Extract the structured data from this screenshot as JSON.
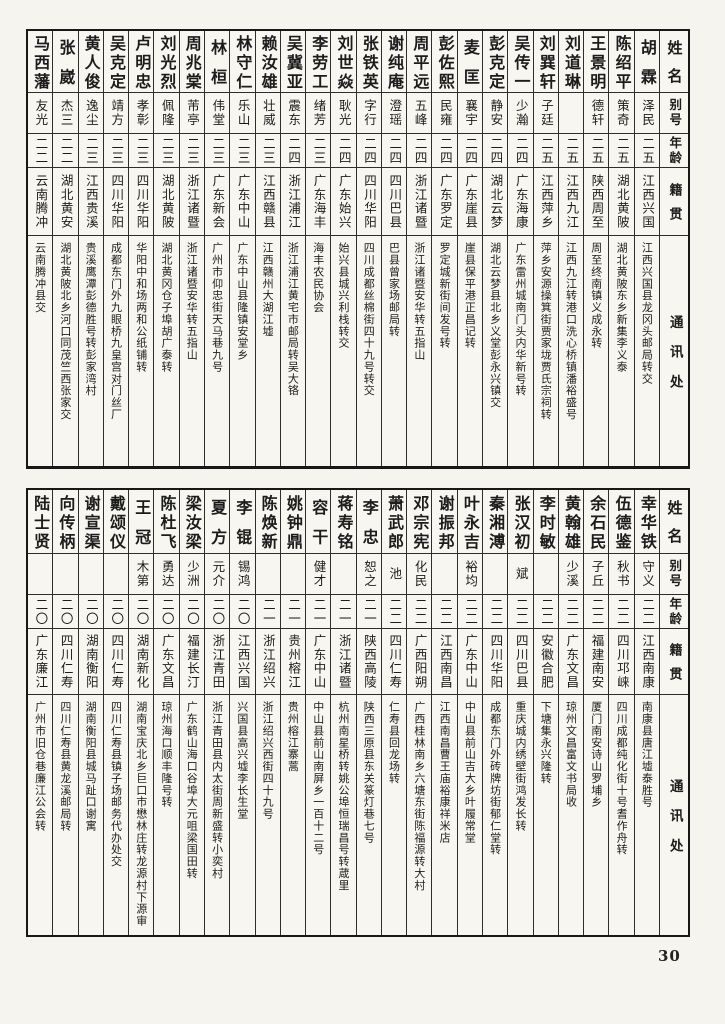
{
  "page_number": "30",
  "headers": {
    "name": "姓名",
    "alias": "别号",
    "age": "年龄",
    "origin": "籍贯",
    "address": "通讯处"
  },
  "tables": [
    {
      "entries": [
        {
          "name": "胡霖",
          "alias": "泽民",
          "age": "二五",
          "origin": "江西兴国",
          "address": "江西兴国县龙冈头邮局转交"
        },
        {
          "name": "陈绍平",
          "alias": "策奇",
          "age": "二五",
          "origin": "湖北黄陂",
          "address": "湖北黄陂东乡新集李义泰"
        },
        {
          "name": "王景明",
          "alias": "德轩",
          "age": "二五",
          "origin": "陕西周至",
          "address": "周至终南镇义成永转"
        },
        {
          "name": "刘道琳",
          "alias": "",
          "age": "二五",
          "origin": "江西九江",
          "address": "江西九江转港口洗心桥镇潘裕盛号"
        },
        {
          "name": "刘巽轩",
          "alias": "子廷",
          "age": "二五",
          "origin": "江西萍乡",
          "address": "萍乡安源操箕街贾家垅贾氏宗祠转"
        },
        {
          "name": "吴传一",
          "alias": "少瀚",
          "age": "二四",
          "origin": "广东海康",
          "address": "广东雷州城南门头内华新号转"
        },
        {
          "name": "彭克定",
          "alias": "静安",
          "age": "二四",
          "origin": "湖北云梦",
          "address": "湖北云梦县北乡义堂彭永兴镇交"
        },
        {
          "name": "麦匡",
          "alias": "襄宇",
          "age": "二四",
          "origin": "广东崖县",
          "address": "崖县保平港正昌记转"
        },
        {
          "name": "彭佐熙",
          "alias": "民雍",
          "age": "二四",
          "origin": "广东罗定",
          "address": "罗定城新街间发号转"
        },
        {
          "name": "周平远",
          "alias": "五峰",
          "age": "二四",
          "origin": "浙江诸暨",
          "address": "浙江诸暨安华转五指山"
        },
        {
          "name": "谢纯庵",
          "alias": "澄瑶",
          "age": "二四",
          "origin": "四川巴县",
          "address": "巴县曾家场邮局转"
        },
        {
          "name": "张铁英",
          "alias": "字行",
          "age": "二四",
          "origin": "四川华阳",
          "address": "四川成都丝棉街四十九号转交"
        },
        {
          "name": "刘世焱",
          "alias": "耿光",
          "age": "二四",
          "origin": "广东始兴",
          "address": "始兴县城兴利栈转交"
        },
        {
          "name": "李劳工",
          "alias": "绪芳",
          "age": "二三",
          "origin": "广东海丰",
          "address": "海丰农民协会"
        },
        {
          "name": "吴冀亚",
          "alias": "震东",
          "age": "二四",
          "origin": "浙江浦江",
          "address": "浙江浦江黄宅市邮局转吴大铬"
        },
        {
          "name": "赖汝雄",
          "alias": "壮威",
          "age": "二三",
          "origin": "江西赣县",
          "address": "江西赣州大湖江墟"
        },
        {
          "name": "林守仁",
          "alias": "乐山",
          "age": "二三",
          "origin": "广东中山",
          "address": "广东中山县隆镇安堂乡"
        },
        {
          "name": "林桓",
          "alias": "伟堂",
          "age": "二三",
          "origin": "广东新会",
          "address": "广州市仰忠街天马巷九号"
        },
        {
          "name": "周兆棠",
          "alias": "芾亭",
          "age": "二三",
          "origin": "浙江诸暨",
          "address": "浙江诸暨安华转五指山"
        },
        {
          "name": "刘光烈",
          "alias": "佩隆",
          "age": "二三",
          "origin": "湖北黄陂",
          "address": "湖北黄冈仓子埠胡广泰转"
        },
        {
          "name": "卢明忠",
          "alias": "孝彰",
          "age": "二三",
          "origin": "四川华阳",
          "address": "华阳中和场两和公纸铺转"
        },
        {
          "name": "吴克定",
          "alias": "靖方",
          "age": "二三",
          "origin": "四川华阳",
          "address": "成都东门外九眼桥九皇宫对门丝厂"
        },
        {
          "name": "黄人俊",
          "alias": "逸尘",
          "age": "二三",
          "origin": "江西贵溪",
          "address": "贵溪鹰潭彭德胜号转彭家湾村"
        },
        {
          "name": "张崴",
          "alias": "杰三",
          "age": "二二",
          "origin": "湖北黄安",
          "address": "湖北黄陂北乡河口同茂竺西张家交"
        },
        {
          "name": "马西藩",
          "alias": "友光",
          "age": "二二",
          "origin": "云南腾冲",
          "address": "云南腾冲县交"
        }
      ]
    },
    {
      "entries": [
        {
          "name": "幸华铁",
          "alias": "守义",
          "age": "二二",
          "origin": "江西南康",
          "address": "南康县唐江墟泰胜号"
        },
        {
          "name": "伍德鉴",
          "alias": "秋书",
          "age": "二二",
          "origin": "四川邛崃",
          "address": "四川成都纯化街十号耆作舟转"
        },
        {
          "name": "余石民",
          "alias": "子丘",
          "age": "二二",
          "origin": "福建南安",
          "address": "厦门南安诗山罗埔乡"
        },
        {
          "name": "黄翰雄",
          "alias": "少溪",
          "age": "二二",
          "origin": "广东文昌",
          "address": "琼州文昌富文书局收"
        },
        {
          "name": "李时敏",
          "alias": "",
          "age": "二二",
          "origin": "安徽合肥",
          "address": "下塘集永兴隆转"
        },
        {
          "name": "张汉初",
          "alias": "斌",
          "age": "二二",
          "origin": "四川巴县",
          "address": "重庆城内绣壁街鸿发长转"
        },
        {
          "name": "秦湘溥",
          "alias": "",
          "age": "二二",
          "origin": "四川华阳",
          "address": "成都东门外砖牌坊街郁仁堂转"
        },
        {
          "name": "叶永吉",
          "alias": "裕均",
          "age": "二二",
          "origin": "广东中山",
          "address": "中山县前山吉大乡叶履常堂"
        },
        {
          "name": "谢振邦",
          "alias": "",
          "age": "二二",
          "origin": "江西南昌",
          "address": "江西南昌曹王庙裕康祥米店"
        },
        {
          "name": "邓宗宪",
          "alias": "化民",
          "age": "二二",
          "origin": "广西阳朔",
          "address": "广西桂林南乡六塘东街陈福源转大村"
        },
        {
          "name": "萧武郎",
          "alias": "池",
          "age": "二二",
          "origin": "四川仁寿",
          "address": "仁寿县回龙场转"
        },
        {
          "name": "李忠",
          "alias": "恕之",
          "age": "二一",
          "origin": "陕西高陵",
          "address": "陕西三原县东关篆灯巷七号"
        },
        {
          "name": "蒋寿铭",
          "alias": "",
          "age": "二一",
          "origin": "浙江诸暨",
          "address": "杭州南星桥转姚公埠恒瑞昌号转葴里"
        },
        {
          "name": "容干",
          "alias": "健才",
          "age": "二一",
          "origin": "广东中山",
          "address": "中山县前山南屏乡一百十二号"
        },
        {
          "name": "姚钟鼎",
          "alias": "",
          "age": "二一",
          "origin": "贵州榕江",
          "address": "贵州榕江寨蒿"
        },
        {
          "name": "陈焕新",
          "alias": "",
          "age": "二一",
          "origin": "浙江绍兴",
          "address": "浙江绍兴西街四十九号"
        },
        {
          "name": "李锟",
          "alias": "锡鸿",
          "age": "二〇",
          "origin": "江西兴国",
          "address": "兴国县高兴墟李长生堂"
        },
        {
          "name": "夏方",
          "alias": "元介",
          "age": "二〇",
          "origin": "浙江青田",
          "address": "浙江青田县内太街周新盛转小奕村"
        },
        {
          "name": "梁汝梁",
          "alias": "少洲",
          "age": "二〇",
          "origin": "福建长汀",
          "address": "广东鹤山海口谷埠大元咀梁国田转"
        },
        {
          "name": "陈杜飞",
          "alias": "勇达",
          "age": "二〇",
          "origin": "广东文昌",
          "address": "琼州海口顺丰隆号转"
        },
        {
          "name": "王冠",
          "alias": "木第",
          "age": "二〇",
          "origin": "湖南新化",
          "address": "湖南宝庆北乡巨口市懋林庄转龙源村下源审"
        },
        {
          "name": "戴颂仪",
          "alias": "",
          "age": "二〇",
          "origin": "四川仁寿",
          "address": "四川仁寿县镇子场邮务代办处交"
        },
        {
          "name": "谢宣渠",
          "alias": "",
          "age": "二〇",
          "origin": "湖南衡阳",
          "address": "湖南衡阳县城马趾口谢寓"
        },
        {
          "name": "向传柄",
          "alias": "",
          "age": "二〇",
          "origin": "四川仁寿",
          "address": "四川仁寿县黄龙溪邮局转"
        },
        {
          "name": "陆士贤",
          "alias": "",
          "age": "二〇",
          "origin": "广东廉江",
          "address": "广州市旧仓巷廉江公会转"
        }
      ]
    }
  ]
}
